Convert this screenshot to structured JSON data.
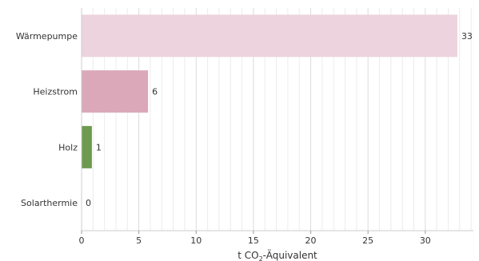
{
  "chart_data": {
    "type": "bar",
    "orientation": "horizontal",
    "categories": [
      "Wärmepumpe",
      "Heizstrom",
      "Holz",
      "Solarthermie"
    ],
    "values": [
      32.8,
      5.8,
      0.9,
      0.0
    ],
    "value_labels": [
      "33",
      "6",
      "1",
      "0"
    ],
    "colors": [
      "#ecd3dd",
      "#dba8b9",
      "#6c9a4e",
      "#ecd3dd"
    ],
    "xlim": [
      0,
      34.2
    ],
    "xticks": [
      0,
      5,
      10,
      15,
      20,
      25,
      30
    ],
    "xlabel_main": "t CO",
    "xlabel_sub": "2",
    "xlabel_rest": "-Äquivalent",
    "grid": "vertical minor and major lines"
  }
}
